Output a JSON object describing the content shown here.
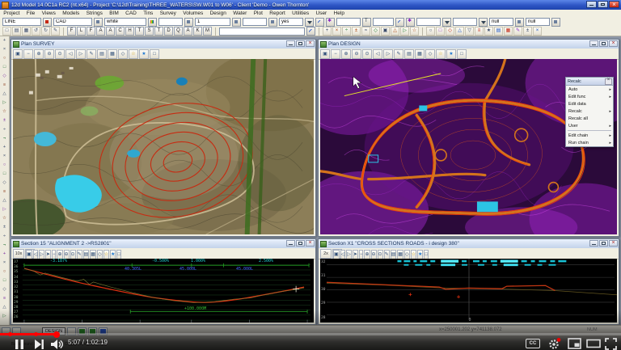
{
  "window": {
    "title": "12d Model  14.0C1a RC2 (nt.x64) - Project 'C:\\12d\\Training\\THREE_WATERS\\SW.W01 to W06' - Client 'Demo - Owen Thornton'"
  },
  "menu": {
    "items": [
      "Project",
      "File",
      "Views",
      "Models",
      "Strings",
      "BIM",
      "CAD",
      "Tins",
      "Survey",
      "Volumes",
      "Design",
      "Water",
      "Plot",
      "Report",
      "Utilities",
      "User",
      "Help"
    ]
  },
  "toolbar": {
    "fields": {
      "cad_type": "LINE",
      "name": "CAD",
      "colour": "white",
      "value": "1",
      "tinable": "yes",
      "null_a": "null",
      "null_b": "null",
      "search_value": ""
    },
    "letters": [
      "F",
      "L",
      "F",
      "A",
      "A",
      "C",
      "H",
      "T",
      "S",
      "T",
      "D",
      "Q",
      "A",
      "K",
      "M"
    ]
  },
  "panels": {
    "survey": {
      "title": "Plan SURVEY"
    },
    "design": {
      "title": "Plan DESIGN",
      "recalc": {
        "title": "Recalc",
        "items": [
          "Auto",
          "Edit func",
          "Edit data",
          "Recalc",
          "Recalc all",
          "User",
          "Edit chain",
          "Run chain"
        ]
      }
    },
    "section_long": {
      "title": "Section 15 \"ALIGNMENT 2 ->RS2801\"",
      "zoom_btn": "10x",
      "grades": [
        "-3.187%",
        "-0.500%",
        "1.000%",
        "2.500%"
      ],
      "lengths": [
        "40.305L",
        "45.000L",
        "45.000L"
      ],
      "dim": "+100.000M",
      "y_ticks": [
        "37",
        "36",
        "35",
        "34",
        "33",
        "32",
        "31",
        "30",
        "29",
        "28",
        "27",
        "26"
      ]
    },
    "section_cross": {
      "title": "Section X1 \"CROSS SECTIONS ROADS - i design 380\"",
      "zoom_btn": "2x",
      "y_ticks": [
        "32",
        "31",
        "30",
        "29",
        "28"
      ],
      "x_tick": "0"
    }
  },
  "statusbar": {
    "design_btn": "DESIGN",
    "coords": "x=250001.202 y=741138.072",
    "num": "NUM",
    "background_tasks": "Background tasks",
    "output_window": "Output Window"
  },
  "player": {
    "time": "5:07 / 1:02:19",
    "cc": "CC"
  }
}
